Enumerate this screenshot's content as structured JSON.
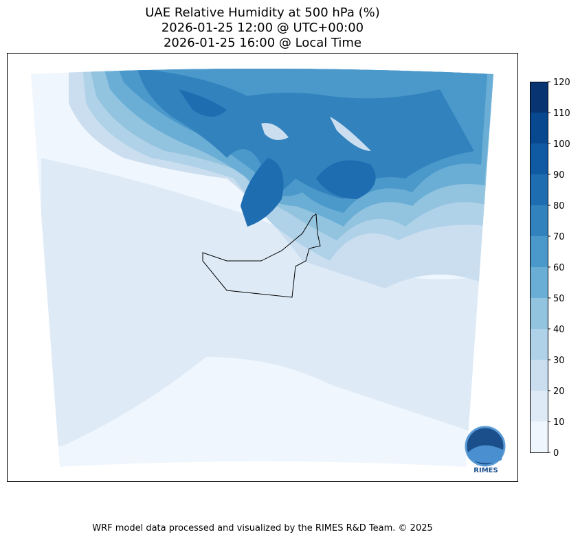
{
  "chart_data": {
    "type": "heatmap",
    "title": [
      "UAE Relative Humidity at 500 hPa (%)",
      "2026-01-25 12:00 @ UTC+00:00",
      "2026-01-25 16:00 @ Local Time"
    ],
    "variable": "Relative Humidity",
    "units": "%",
    "region": "UAE",
    "colorbar": {
      "levels": [
        0,
        10,
        20,
        30,
        40,
        50,
        60,
        70,
        80,
        90,
        100,
        110,
        120
      ],
      "tick_labels": [
        "0",
        "10",
        "20",
        "30",
        "40",
        "50",
        "60",
        "70",
        "80",
        "90",
        "100",
        "110",
        "120"
      ],
      "colors": [
        "#f0f6fd",
        "#deebf7",
        "#cadef0",
        "#b0d2e8",
        "#92c3df",
        "#6aaed6",
        "#4b98ca",
        "#3282be",
        "#1f6db1",
        "#0f5aa3",
        "#08488e",
        "#083471"
      ]
    },
    "logo_text": "RIMES"
  },
  "footer": "WRF model data processed and visualized by the RIMES R&D Team. © 2025"
}
